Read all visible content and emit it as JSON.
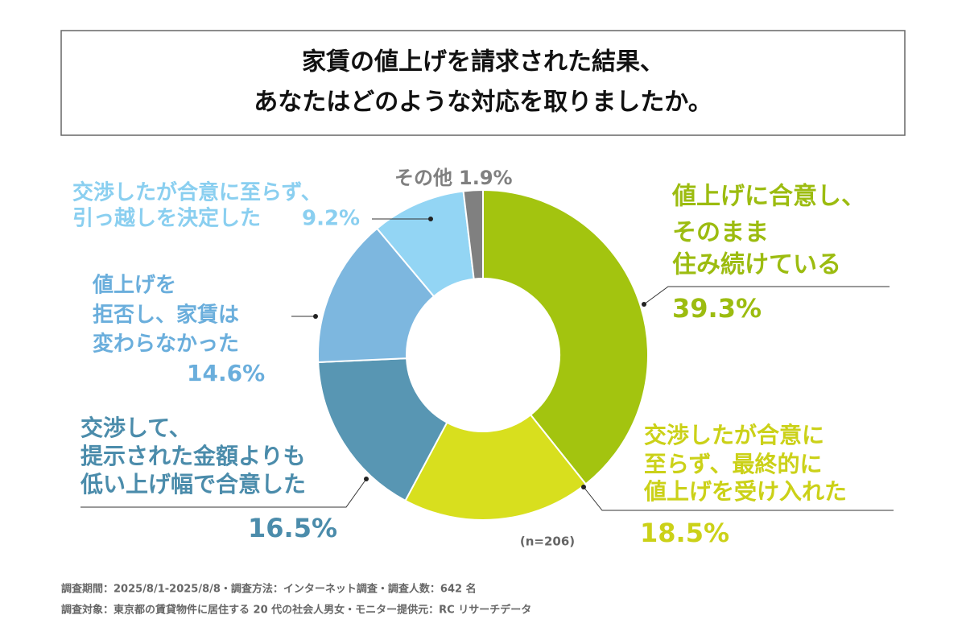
{
  "chart_data": {
    "type": "donut",
    "title": [
      "家賃の値上げを請求された結果、",
      "あなたはどのような対応を取りましたか。"
    ],
    "categories": [
      [
        "値上げに合意し、",
        "そのまま",
        "住み続けている"
      ],
      [
        "交渉したが合意に",
        "至らず、最終的に",
        "値上げを受け入れた"
      ],
      [
        "交渉して、",
        "提示された金額よりも",
        "低い上げ幅で合意した"
      ],
      [
        "値上げを",
        "拒否し、家賃は",
        "変わらなかった"
      ],
      [
        "交渉したが合意に至らず、",
        "引っ越しを決定した"
      ],
      [
        "その他"
      ]
    ],
    "values": [
      39.3,
      18.5,
      16.5,
      14.6,
      9.2,
      1.9
    ],
    "value_labels": [
      "39.3%",
      "18.5%",
      "16.5%",
      "14.6%",
      "9.2%",
      "1.9%"
    ],
    "colors": [
      "#a3c40f",
      "#d8df1e",
      "#5896b3",
      "#7db7df",
      "#93d5f4",
      "#808080"
    ],
    "label_colors": [
      "#9cbc10",
      "#cbd118",
      "#4b8cab",
      "#6aaedc",
      "#8acff0",
      "#808080"
    ],
    "note": "(n=206)",
    "footnotes": [
      "調査期間：2025/8/1-2025/8/8・調査方法：インターネット調査・調査人数：642 名",
      "調査対象：東京都の賃貸物件に居住する 20 代の社会人男女・モニター提供元：RC リサーチデータ"
    ]
  }
}
